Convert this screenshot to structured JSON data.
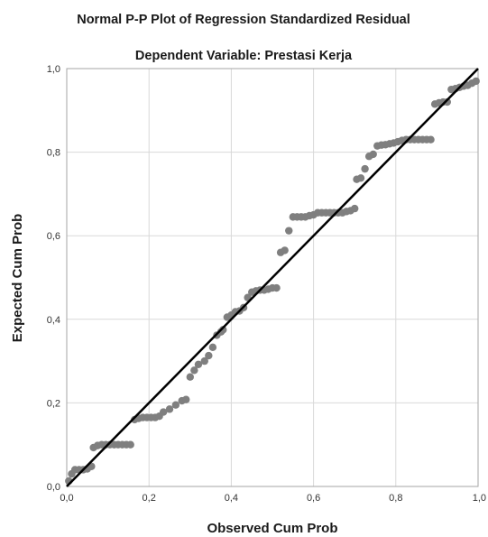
{
  "chart_data": {
    "type": "scatter",
    "title": "Normal P-P Plot of Regression Standardized Residual",
    "subtitle": "Dependent Variable: Prestasi Kerja",
    "xlabel": "Observed Cum Prob",
    "ylabel": "Expected Cum Prob",
    "xlim": [
      0,
      1
    ],
    "ylim": [
      0,
      1
    ],
    "x_ticks": [
      "0,0",
      "0,2",
      "0,4",
      "0,6",
      "0,8",
      "1,0"
    ],
    "y_ticks": [
      "0,0",
      "0,2",
      "0,4",
      "0,6",
      "0,8",
      "1,0"
    ],
    "grid": true,
    "reference_line": {
      "from": [
        0,
        0
      ],
      "to": [
        1,
        1
      ]
    },
    "colors": {
      "points": "#7f7f7f",
      "line": "#000000",
      "grid": "#d9d9d9",
      "frame": "#a6a6a6"
    },
    "points": [
      [
        0.005,
        0.013
      ],
      [
        0.012,
        0.03
      ],
      [
        0.02,
        0.04
      ],
      [
        0.03,
        0.04
      ],
      [
        0.04,
        0.04
      ],
      [
        0.05,
        0.042
      ],
      [
        0.06,
        0.048
      ],
      [
        0.065,
        0.093
      ],
      [
        0.075,
        0.098
      ],
      [
        0.085,
        0.1
      ],
      [
        0.095,
        0.1
      ],
      [
        0.105,
        0.1
      ],
      [
        0.115,
        0.1
      ],
      [
        0.125,
        0.1
      ],
      [
        0.135,
        0.1
      ],
      [
        0.145,
        0.1
      ],
      [
        0.155,
        0.1
      ],
      [
        0.165,
        0.16
      ],
      [
        0.175,
        0.163
      ],
      [
        0.185,
        0.165
      ],
      [
        0.195,
        0.165
      ],
      [
        0.205,
        0.165
      ],
      [
        0.215,
        0.165
      ],
      [
        0.225,
        0.168
      ],
      [
        0.235,
        0.178
      ],
      [
        0.25,
        0.185
      ],
      [
        0.265,
        0.195
      ],
      [
        0.28,
        0.205
      ],
      [
        0.29,
        0.208
      ],
      [
        0.3,
        0.262
      ],
      [
        0.31,
        0.278
      ],
      [
        0.32,
        0.292
      ],
      [
        0.335,
        0.3
      ],
      [
        0.345,
        0.313
      ],
      [
        0.355,
        0.333
      ],
      [
        0.365,
        0.362
      ],
      [
        0.375,
        0.37
      ],
      [
        0.38,
        0.375
      ],
      [
        0.39,
        0.405
      ],
      [
        0.4,
        0.41
      ],
      [
        0.41,
        0.418
      ],
      [
        0.42,
        0.42
      ],
      [
        0.43,
        0.428
      ],
      [
        0.44,
        0.452
      ],
      [
        0.45,
        0.465
      ],
      [
        0.46,
        0.468
      ],
      [
        0.47,
        0.47
      ],
      [
        0.48,
        0.47
      ],
      [
        0.49,
        0.472
      ],
      [
        0.5,
        0.475
      ],
      [
        0.51,
        0.475
      ],
      [
        0.52,
        0.56
      ],
      [
        0.53,
        0.565
      ],
      [
        0.54,
        0.612
      ],
      [
        0.55,
        0.645
      ],
      [
        0.56,
        0.645
      ],
      [
        0.57,
        0.645
      ],
      [
        0.58,
        0.645
      ],
      [
        0.59,
        0.648
      ],
      [
        0.6,
        0.65
      ],
      [
        0.61,
        0.655
      ],
      [
        0.62,
        0.655
      ],
      [
        0.63,
        0.655
      ],
      [
        0.64,
        0.655
      ],
      [
        0.65,
        0.655
      ],
      [
        0.66,
        0.655
      ],
      [
        0.67,
        0.655
      ],
      [
        0.68,
        0.658
      ],
      [
        0.69,
        0.66
      ],
      [
        0.7,
        0.665
      ],
      [
        0.705,
        0.735
      ],
      [
        0.715,
        0.738
      ],
      [
        0.725,
        0.76
      ],
      [
        0.735,
        0.79
      ],
      [
        0.745,
        0.795
      ],
      [
        0.755,
        0.815
      ],
      [
        0.765,
        0.817
      ],
      [
        0.775,
        0.818
      ],
      [
        0.785,
        0.82
      ],
      [
        0.795,
        0.822
      ],
      [
        0.805,
        0.825
      ],
      [
        0.815,
        0.828
      ],
      [
        0.825,
        0.83
      ],
      [
        0.835,
        0.83
      ],
      [
        0.845,
        0.83
      ],
      [
        0.855,
        0.83
      ],
      [
        0.865,
        0.83
      ],
      [
        0.875,
        0.83
      ],
      [
        0.885,
        0.83
      ],
      [
        0.895,
        0.915
      ],
      [
        0.905,
        0.918
      ],
      [
        0.915,
        0.92
      ],
      [
        0.925,
        0.92
      ],
      [
        0.935,
        0.95
      ],
      [
        0.945,
        0.952
      ],
      [
        0.955,
        0.955
      ],
      [
        0.965,
        0.958
      ],
      [
        0.975,
        0.96
      ],
      [
        0.985,
        0.965
      ],
      [
        0.995,
        0.97
      ]
    ]
  }
}
